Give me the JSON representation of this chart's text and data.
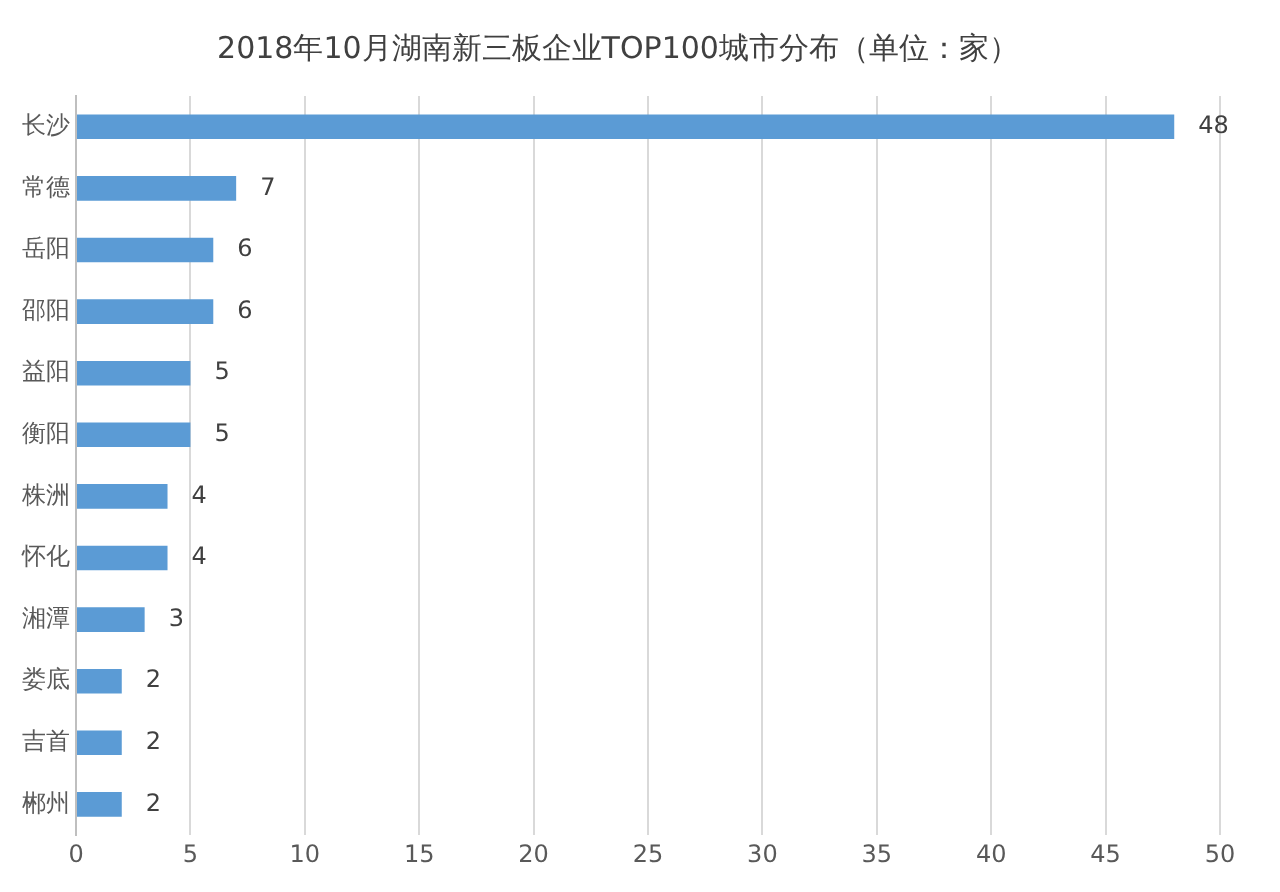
{
  "chart_data": {
    "type": "bar",
    "orientation": "horizontal",
    "title": "2018年10月湖南新三板企业TOP100城市分布（单位：家）",
    "categories": [
      "长沙",
      "常德",
      "岳阳",
      "邵阳",
      "益阳",
      "衡阳",
      "株洲",
      "怀化",
      "湘潭",
      "娄底",
      "吉首",
      "郴州"
    ],
    "values": [
      48,
      7,
      6,
      6,
      5,
      5,
      4,
      4,
      3,
      2,
      2,
      2
    ],
    "color": "#5b9bd5",
    "xlim": [
      0,
      50
    ],
    "xticks": [
      0,
      5,
      10,
      15,
      20,
      25,
      30,
      35,
      40,
      45,
      50
    ],
    "grid": "x",
    "data_labels": true,
    "legend": false
  }
}
